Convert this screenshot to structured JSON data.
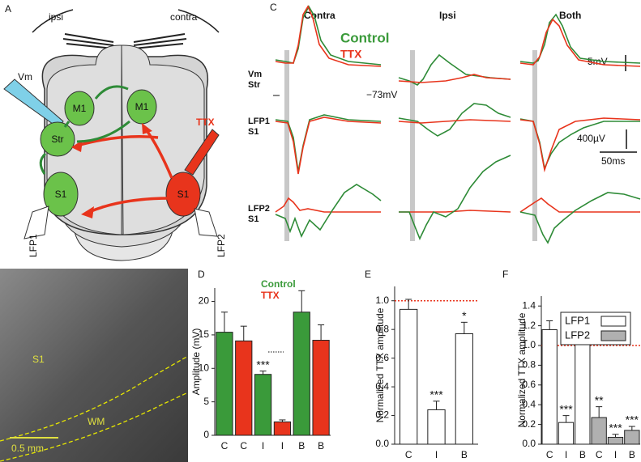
{
  "panel_letters": [
    "A",
    "B",
    "C",
    "D",
    "E",
    "F"
  ],
  "panel_a": {
    "labels": [
      "ipsi",
      "contra",
      "Vm",
      "M1",
      "M1",
      "Str",
      "S1",
      "S1",
      "TTX",
      "LFP1",
      "LFP2"
    ]
  },
  "panel_b": {
    "labels": [
      "S1",
      "WM",
      "0.5 mm"
    ]
  },
  "panel_c": {
    "columns": [
      "Contra",
      "Ipsi",
      "Both"
    ],
    "legend": [
      "Control",
      "TTX"
    ],
    "rows": [
      [
        "Vm",
        "Str"
      ],
      [
        "LFP1",
        "S1"
      ],
      [
        "LFP2",
        "S1"
      ]
    ],
    "labels": [
      "−73mV",
      "5mV",
      "400µV",
      "50ms"
    ]
  },
  "chart_data": [
    {
      "type": "bar",
      "ylabel": "Amplitude (mV)",
      "categories": [
        "C",
        "C",
        "I",
        "I",
        "B",
        "B"
      ],
      "series": [
        {
          "name": "Control",
          "color": "#3a9a3a",
          "values": [
            15.4,
            null,
            9.1,
            null,
            18.4,
            null
          ],
          "errors": [
            3.0,
            null,
            0.5,
            null,
            3.2,
            null
          ]
        },
        {
          "name": "TTX",
          "color": "#e8341c",
          "values": [
            null,
            14.1,
            null,
            2.0,
            null,
            14.2
          ],
          "errors": [
            null,
            2.2,
            null,
            0.3,
            null,
            2.3
          ]
        }
      ],
      "ylim": [
        0,
        22
      ],
      "yticks": [
        0,
        5,
        10,
        15,
        20
      ],
      "value_annotations": [
        null,
        null,
        "***",
        null,
        null,
        null
      ]
    },
    {
      "type": "bar",
      "ylabel": "Normalized TTX amplitude",
      "categories": [
        "C",
        "I",
        "B"
      ],
      "series": [
        {
          "color": "#ffffff",
          "values": [
            0.94,
            0.24,
            0.77
          ],
          "errors": [
            0.07,
            0.06,
            0.08
          ]
        }
      ],
      "ylim": [
        0,
        1.1
      ],
      "yticks": [
        {
          "value": 0,
          "label": "0.0"
        },
        0.2,
        0.4,
        0.6,
        0.8,
        {
          "value": 1,
          "label": "1.0"
        }
      ],
      "reference_line": 1,
      "value_annotations": [
        null,
        "***",
        "*"
      ]
    },
    {
      "type": "bar",
      "ylabel": "Normalized TTX amplitude",
      "categories": [
        "C",
        "I",
        "B",
        "C",
        "I",
        "B"
      ],
      "series": [
        {
          "name": "LFP1",
          "color": "#ffffff",
          "values": [
            1.16,
            0.22,
            1.08,
            null,
            null,
            null
          ],
          "errors": [
            0.09,
            0.07,
            0.08,
            null,
            null,
            null
          ]
        },
        {
          "name": "LFP2",
          "color": "#b0b0b0",
          "values": [
            null,
            null,
            null,
            0.27,
            0.07,
            0.14
          ],
          "errors": [
            null,
            null,
            null,
            0.11,
            0.03,
            0.04
          ]
        }
      ],
      "ylim": [
        0,
        1.5
      ],
      "yticks": [
        {
          "value": 0,
          "label": "0.0"
        },
        0.2,
        0.4,
        0.6,
        0.8,
        {
          "value": 1,
          "label": "1.0"
        },
        1.2,
        1.4
      ],
      "reference_line": 1,
      "value_annotations": [
        null,
        "***",
        null,
        "**",
        "***",
        "***"
      ]
    }
  ]
}
